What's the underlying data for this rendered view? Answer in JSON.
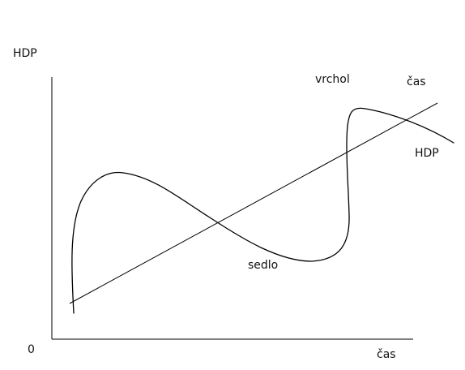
{
  "labels": {
    "y_axis": "HDP",
    "origin": "0",
    "x_axis": "čas",
    "peak": "vrchol",
    "trough": "sedlo",
    "trend_line_end": "čas",
    "gdp_curve_end": "HDP"
  },
  "colors": {
    "background": "#ffffff",
    "ink": "#000000"
  }
}
